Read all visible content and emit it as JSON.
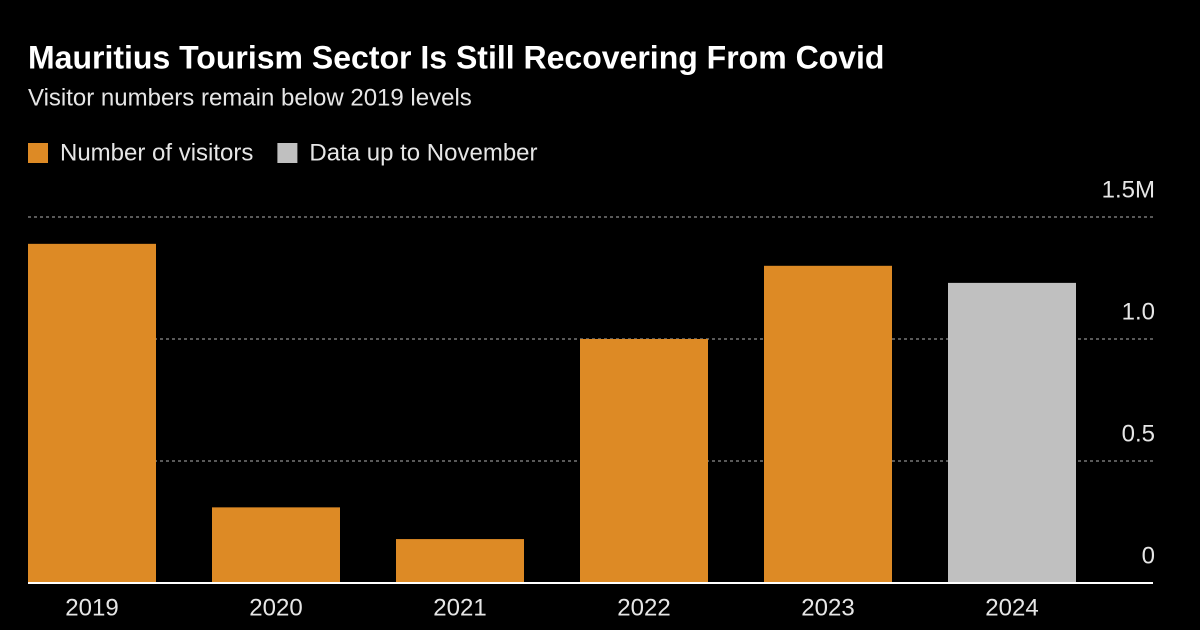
{
  "chart_data": {
    "type": "bar",
    "title": "Mauritius Tourism Sector Is Still Recovering From Covid",
    "subtitle": "Visitor numbers remain below 2019 levels",
    "legend": [
      {
        "name": "Number of visitors",
        "color": "#dd8a25"
      },
      {
        "name": "Data up to November",
        "color": "#c0c0c0"
      }
    ],
    "categories": [
      "2019",
      "2020",
      "2021",
      "2022",
      "2023",
      "2024"
    ],
    "values": [
      1.39,
      0.31,
      0.18,
      1.0,
      1.3,
      1.23
    ],
    "bar_colors": [
      "#dd8a25",
      "#dd8a25",
      "#dd8a25",
      "#dd8a25",
      "#dd8a25",
      "#c0c0c0"
    ],
    "ylim": [
      0,
      1.5
    ],
    "yticks": [
      0,
      0.5,
      {
        "value": 1,
        "label": "1.0"
      },
      {
        "value": 1.5,
        "label": "1.5M"
      }
    ],
    "grid": true
  }
}
